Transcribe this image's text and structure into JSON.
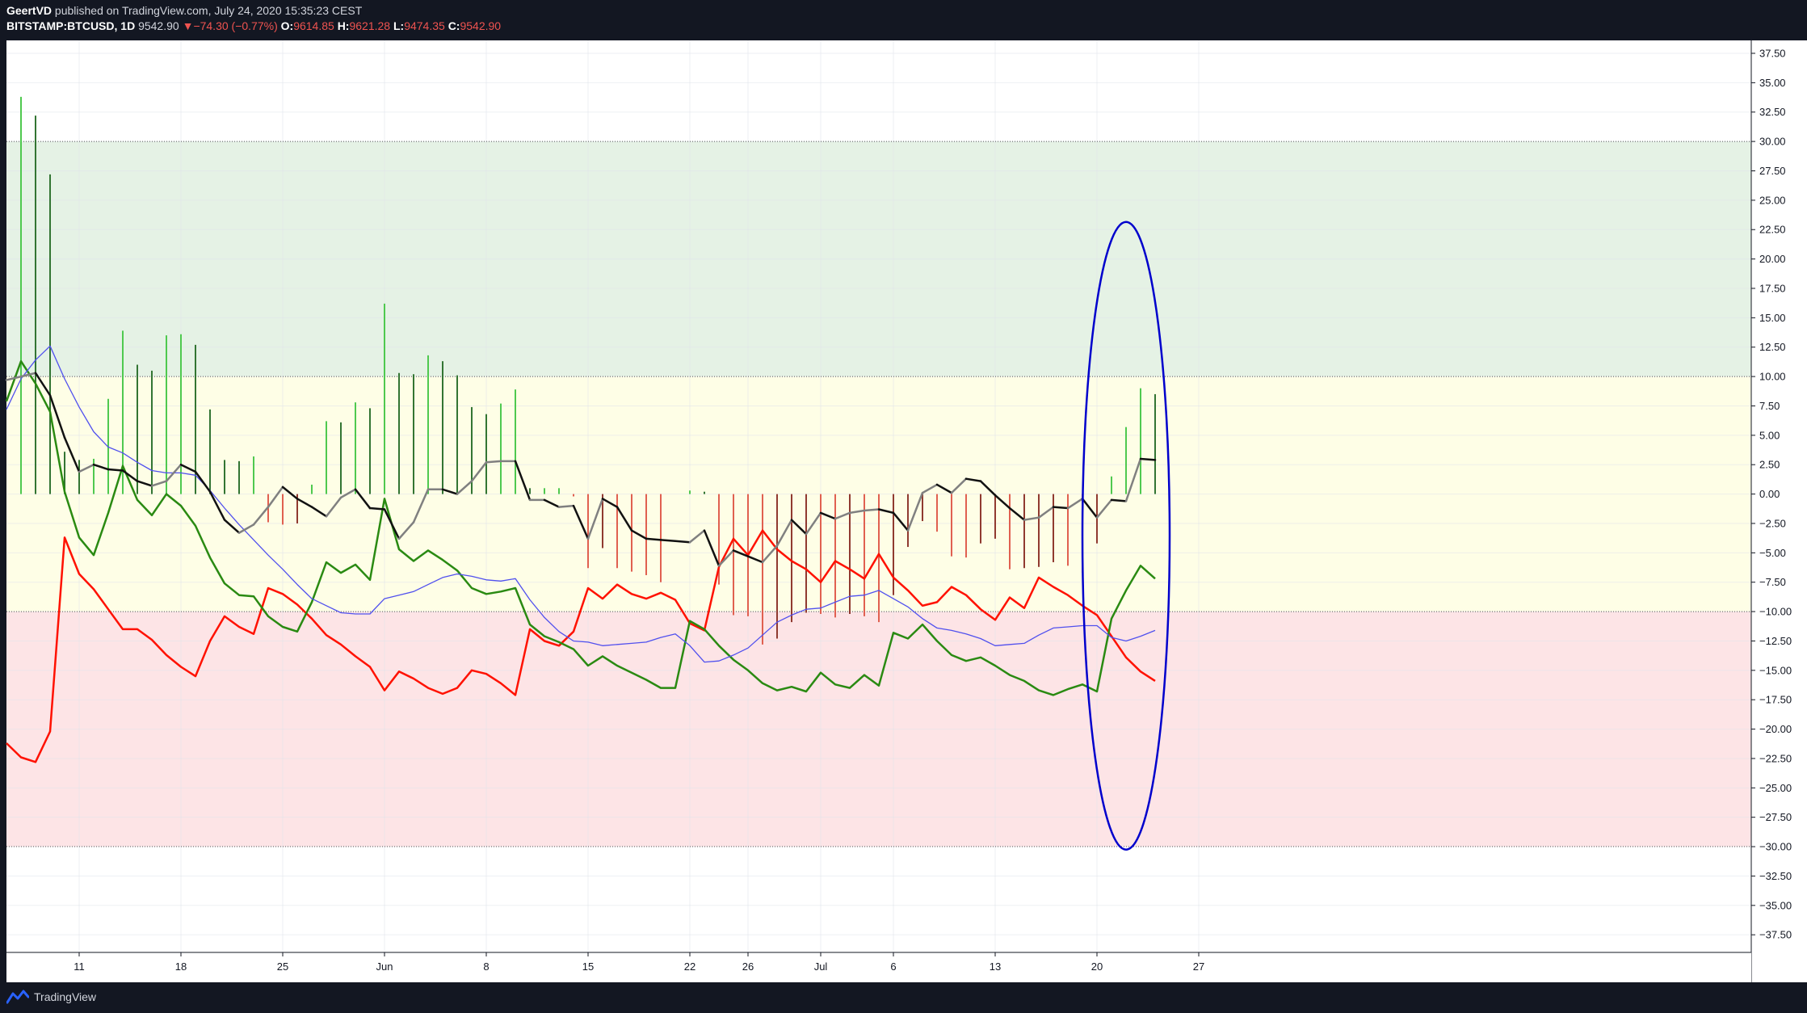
{
  "header": {
    "author": "GeertVD",
    "published_text": "published on TradingView.com, July 24, 2020 15:35:23 CEST",
    "symbol": "BITSTAMP:BTCUSD, 1D",
    "last": "9542.90",
    "change_arrow": "▼",
    "change": "−74.30 (−0.77%)",
    "o_label": "O:",
    "o_value": "9614.85",
    "h_label": "H:",
    "h_value": "9621.28",
    "l_label": "L:",
    "l_value": "9474.35",
    "c_label": "C:",
    "c_value": "9542.90"
  },
  "footer": {
    "brand": "TradingView"
  },
  "colors": {
    "background": "#ffffff",
    "frame": "#131722",
    "zone_overbought": "#e5f2e5",
    "zone_neutral": "#fefee6",
    "zone_oversold": "#fde4e6",
    "red_line": "#ff1100",
    "green_line": "#2a8a12",
    "blue_line": "#5050ee",
    "osc_up": "#808080",
    "osc_down": "#111111",
    "hist_pos": "#4fc94f",
    "hist_pos_dark": "#337533",
    "hist_neg": "#e06050",
    "hist_neg_dark": "#903a30",
    "ellipse": "#0000cc"
  },
  "chart_data": {
    "type": "line",
    "x_ticks": [
      {
        "day": 11,
        "label": "11"
      },
      {
        "day": 18,
        "label": "18"
      },
      {
        "day": 25,
        "label": "25"
      },
      {
        "day": 32,
        "label": "Jun"
      },
      {
        "day": 39,
        "label": "8"
      },
      {
        "day": 46,
        "label": "15"
      },
      {
        "day": 53,
        "label": "22"
      },
      {
        "day": 57,
        "label": "26"
      },
      {
        "day": 62,
        "label": "Jul"
      },
      {
        "day": 67,
        "label": "6"
      },
      {
        "day": 74,
        "label": "13"
      },
      {
        "day": 81,
        "label": "20"
      },
      {
        "day": 88,
        "label": "27"
      }
    ],
    "ylim": [
      -39,
      38.6
    ],
    "y_ticks": [
      37.5,
      35,
      32.5,
      30,
      27.5,
      25,
      22.5,
      20,
      17.5,
      15,
      12.5,
      10,
      7.5,
      5,
      2.5,
      0,
      -2.5,
      -5,
      -7.5,
      -10,
      -12.5,
      -15,
      -17.5,
      -20,
      -22.5,
      -25,
      -27.5,
      -30,
      -32.5,
      -35,
      -37.5
    ],
    "y_tick_labels": [
      "37.50",
      "35.00",
      "32.50",
      "30.00",
      "27.50",
      "25.00",
      "22.50",
      "20.00",
      "17.50",
      "15.00",
      "12.50",
      "10.00",
      "7.50",
      "5.00",
      "2.50",
      "0.00",
      "−2.50",
      "−5.00",
      "−7.50",
      "−10.00",
      "−12.50",
      "−15.00",
      "−17.50",
      "−20.00",
      "−22.50",
      "−25.00",
      "−27.50",
      "−30.00",
      "−32.50",
      "−35.00",
      "−37.50"
    ],
    "bands": [
      {
        "from": 10,
        "to": 30,
        "zone": "overbought"
      },
      {
        "from": -10,
        "to": 10,
        "zone": "neutral"
      },
      {
        "from": -30,
        "to": -10,
        "zone": "oversold"
      }
    ],
    "series": [
      {
        "color_key": "red_line",
        "x": [
          6,
          7,
          8,
          9,
          10,
          11,
          12,
          13,
          14,
          15,
          16,
          17,
          18,
          19,
          20,
          21,
          22,
          23,
          24,
          25,
          26,
          27,
          28,
          29,
          30,
          31,
          32,
          33,
          34,
          35,
          36,
          37,
          38,
          39,
          40,
          41,
          42,
          43,
          44,
          45,
          46,
          47,
          48,
          49,
          50,
          51,
          52,
          53,
          54,
          55,
          56,
          57,
          58,
          59,
          60,
          61,
          62,
          63,
          64,
          65,
          66,
          67,
          68,
          69,
          70,
          71,
          72,
          73,
          74,
          75,
          76,
          77,
          78,
          79,
          80,
          81,
          82,
          83,
          84,
          85
        ],
        "values": [
          -21.2,
          -22.4,
          -22.8,
          -20.2,
          -3.7,
          -6.8,
          -8.1,
          -9.8,
          -11.5,
          -11.5,
          -12.4,
          -13.7,
          -14.7,
          -15.5,
          -12.5,
          -10.4,
          -11.3,
          -11.9,
          -8.0,
          -8.5,
          -9.4,
          -10.6,
          -12.0,
          -12.8,
          -13.8,
          -14.7,
          -16.7,
          -15.1,
          -15.7,
          -16.5,
          -17.0,
          -16.5,
          -15.0,
          -15.3,
          -16.1,
          -17.1,
          -11.5,
          -12.5,
          -12.9,
          -11.7,
          -8.0,
          -8.9,
          -7.7,
          -8.5,
          -8.9,
          -8.4,
          -9.0,
          -11.0,
          -11.6,
          -6.2,
          -3.8,
          -5.2,
          -3.1,
          -4.7,
          -5.7,
          -6.4,
          -7.5,
          -5.7,
          -6.4,
          -7.2,
          -5.1,
          -7.1,
          -8.2,
          -9.5,
          -9.2,
          -7.9,
          -8.6,
          -9.8,
          -10.7,
          -8.8,
          -9.7,
          -7.1,
          -7.9,
          -8.6,
          -9.5,
          -10.3,
          -12.1,
          -13.9,
          -15.1,
          -15.9
        ]
      },
      {
        "color_key": "green_line",
        "x": [
          6,
          7,
          8,
          9,
          10,
          11,
          12,
          13,
          14,
          15,
          16,
          17,
          18,
          19,
          20,
          21,
          22,
          23,
          24,
          25,
          26,
          27,
          28,
          29,
          30,
          31,
          32,
          33,
          34,
          35,
          36,
          37,
          38,
          39,
          40,
          41,
          42,
          43,
          44,
          45,
          46,
          47,
          48,
          49,
          50,
          51,
          52,
          53,
          54,
          55,
          56,
          57,
          58,
          59,
          60,
          61,
          62,
          63,
          64,
          65,
          66,
          67,
          68,
          69,
          70,
          71,
          72,
          73,
          74,
          75,
          76,
          77,
          78,
          79,
          80,
          81,
          82,
          83,
          84,
          85
        ],
        "values": [
          7.9,
          11.3,
          9.4,
          7.0,
          0.2,
          -3.7,
          -5.2,
          -1.6,
          2.4,
          -0.5,
          -1.8,
          0.0,
          -1.0,
          -2.7,
          -5.4,
          -7.6,
          -8.6,
          -8.7,
          -10.4,
          -11.3,
          -11.7,
          -9.2,
          -5.8,
          -6.7,
          -6.0,
          -7.3,
          -0.4,
          -4.7,
          -5.7,
          -4.8,
          -5.6,
          -6.5,
          -8.0,
          -8.5,
          -8.3,
          -8.0,
          -11.1,
          -12.1,
          -12.6,
          -13.2,
          -14.6,
          -13.8,
          -14.6,
          -15.2,
          -15.8,
          -16.5,
          -16.5,
          -10.8,
          -11.5,
          -12.9,
          -14.1,
          -15.0,
          -16.1,
          -16.7,
          -16.4,
          -16.8,
          -15.2,
          -16.2,
          -16.5,
          -15.4,
          -16.3,
          -11.8,
          -12.3,
          -11.1,
          -12.5,
          -13.7,
          -14.2,
          -13.9,
          -14.6,
          -15.4,
          -15.9,
          -16.7,
          -17.1,
          -16.6,
          -16.2,
          -16.8,
          -10.6,
          -8.2,
          -6.1,
          -7.2
        ]
      },
      {
        "color_key": "blue_line",
        "x": [
          6,
          7,
          8,
          9,
          10,
          11,
          12,
          13,
          14,
          15,
          16,
          17,
          18,
          19,
          20,
          21,
          22,
          23,
          24,
          25,
          26,
          27,
          28,
          29,
          30,
          31,
          32,
          33,
          34,
          35,
          36,
          37,
          38,
          39,
          40,
          41,
          42,
          43,
          44,
          45,
          46,
          47,
          48,
          49,
          50,
          51,
          52,
          53,
          54,
          55,
          56,
          57,
          58,
          59,
          60,
          61,
          62,
          63,
          64,
          65,
          66,
          67,
          68,
          69,
          70,
          71,
          72,
          73,
          74,
          75,
          76,
          77,
          78,
          79,
          80,
          81,
          82,
          83,
          84,
          85
        ],
        "values": [
          7.2,
          9.8,
          11.4,
          12.6,
          9.8,
          7.4,
          5.3,
          4.0,
          3.5,
          2.7,
          2.0,
          1.8,
          1.8,
          1.6,
          0.3,
          -1.2,
          -2.6,
          -3.9,
          -5.2,
          -6.4,
          -7.7,
          -8.9,
          -9.5,
          -10.1,
          -10.2,
          -10.2,
          -8.9,
          -8.6,
          -8.3,
          -7.7,
          -7.1,
          -6.8,
          -7.0,
          -7.3,
          -7.4,
          -7.2,
          -9.0,
          -10.5,
          -11.7,
          -12.5,
          -12.6,
          -12.9,
          -12.8,
          -12.7,
          -12.6,
          -12.2,
          -11.9,
          -12.9,
          -14.3,
          -14.2,
          -13.7,
          -13.1,
          -12.0,
          -10.9,
          -10.3,
          -9.8,
          -9.7,
          -9.2,
          -8.7,
          -8.6,
          -8.2,
          -8.9,
          -9.6,
          -10.6,
          -11.4,
          -11.6,
          -11.9,
          -12.3,
          -12.9,
          -12.8,
          -12.7,
          -12.0,
          -11.4,
          -11.3,
          -11.2,
          -11.2,
          -12.2,
          -12.5,
          -12.1,
          -11.6
        ]
      },
      {
        "color_key": "osc",
        "x": [
          6,
          7,
          8,
          9,
          10,
          11,
          12,
          13,
          14,
          15,
          16,
          17,
          18,
          19,
          20,
          21,
          22,
          23,
          24,
          25,
          26,
          27,
          28,
          29,
          30,
          31,
          32,
          33,
          34,
          35,
          36,
          37,
          38,
          39,
          40,
          41,
          42,
          43,
          44,
          45,
          46,
          47,
          48,
          49,
          50,
          51,
          52,
          53,
          54,
          55,
          56,
          57,
          58,
          59,
          60,
          61,
          62,
          63,
          64,
          65,
          66,
          67,
          68,
          69,
          70,
          71,
          72,
          73,
          74,
          75,
          76,
          77,
          78,
          79,
          80,
          81,
          82,
          83,
          84,
          85
        ],
        "values": [
          9.7,
          10.0,
          10.3,
          8.4,
          4.8,
          1.9,
          2.5,
          2.1,
          2.0,
          1.1,
          0.7,
          1.1,
          2.5,
          1.9,
          0.2,
          -2.2,
          -3.3,
          -2.6,
          -1.1,
          0.6,
          -0.4,
          -1.1,
          -1.9,
          -0.3,
          0.4,
          -1.2,
          -1.3,
          -3.8,
          -2.4,
          0.4,
          0.4,
          0.0,
          1.1,
          2.7,
          2.8,
          2.8,
          -0.5,
          -0.5,
          -1.1,
          -1.0,
          -3.8,
          -0.4,
          -1.1,
          -3.1,
          -3.8,
          -3.9,
          -4.0,
          -4.1,
          -3.1,
          -6.1,
          -4.8,
          -5.3,
          -5.8,
          -4.4,
          -2.2,
          -3.4,
          -1.6,
          -2.1,
          -1.6,
          -1.4,
          -1.3,
          -1.6,
          -3.1,
          0.1,
          0.8,
          0.1,
          1.3,
          1.1,
          -0.1,
          -1.2,
          -2.2,
          -2.0,
          -1.1,
          -1.2,
          -0.4,
          -2.0,
          -0.5,
          -0.6,
          3.0,
          2.9
        ]
      }
    ],
    "histogram": {
      "x": [
        6,
        7,
        8,
        9,
        10,
        11,
        12,
        13,
        14,
        15,
        16,
        17,
        18,
        19,
        20,
        21,
        22,
        23,
        24,
        25,
        26,
        27,
        28,
        29,
        30,
        31,
        32,
        33,
        34,
        35,
        36,
        37,
        38,
        39,
        40,
        41,
        42,
        43,
        44,
        45,
        46,
        47,
        48,
        49,
        50,
        51,
        52,
        53,
        54,
        55,
        56,
        57,
        58,
        59,
        60,
        61,
        62,
        63,
        64,
        65,
        66,
        67,
        68,
        69,
        70,
        71,
        72,
        73,
        74,
        75,
        76,
        77,
        78,
        79,
        80,
        81,
        82,
        83,
        84,
        85
      ],
      "values": [
        0,
        33.8,
        32.2,
        27.2,
        3.6,
        2.9,
        3.0,
        8.1,
        13.9,
        11.0,
        10.5,
        13.5,
        13.6,
        12.7,
        7.2,
        2.9,
        2.8,
        3.2,
        -2.4,
        -2.6,
        -2.5,
        0.8,
        6.2,
        6.1,
        7.8,
        7.3,
        16.2,
        10.3,
        10.2,
        11.8,
        11.3,
        10.1,
        7.4,
        6.8,
        7.7,
        8.9,
        0.5,
        0.5,
        0.5,
        -0.2,
        -6.3,
        -4.6,
        -6.3,
        -6.6,
        -6.9,
        -7.5,
        0,
        0.3,
        0.2,
        -7.7,
        -10.3,
        -10.4,
        -12.8,
        -12.3,
        -10.9,
        -10.1,
        -10.2,
        -10.5,
        -10.2,
        -10.4,
        -10.9,
        -8.6,
        -4.5,
        -2.3,
        -3.2,
        -5.3,
        -5.4,
        -4.2,
        -3.8,
        -6.4,
        -6.3,
        -6.2,
        -5.8,
        -6.1,
        -6.7,
        -4.2,
        1.5,
        5.7,
        9.0,
        8.5
      ]
    },
    "annotations": [
      {
        "type": "ellipse",
        "cx_day": 83.0,
        "cy": -3.55,
        "rx_days": 3.0,
        "ry": 26.7
      }
    ]
  }
}
